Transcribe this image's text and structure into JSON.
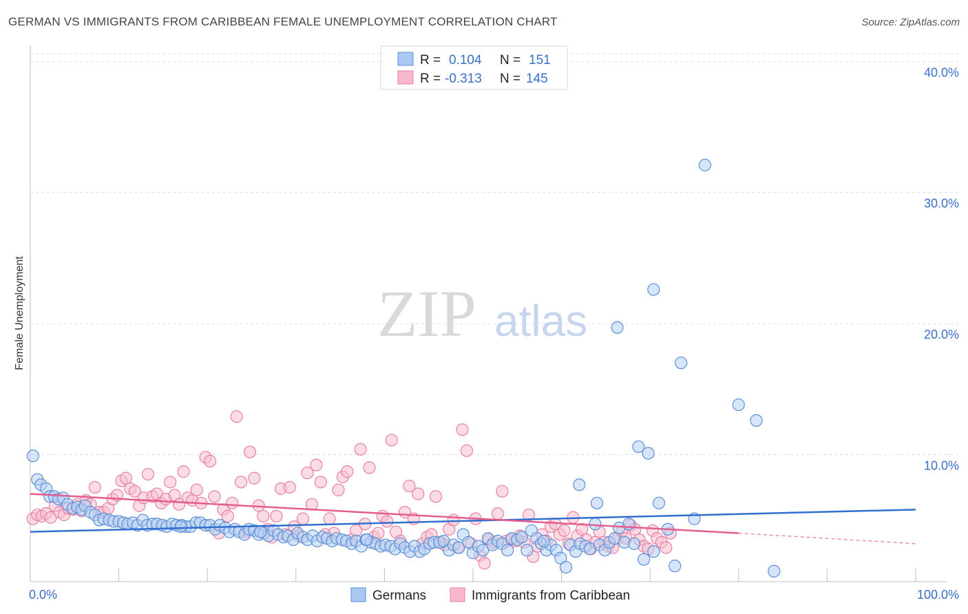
{
  "header": {
    "title": "GERMAN VS IMMIGRANTS FROM CARIBBEAN FEMALE UNEMPLOYMENT CORRELATION CHART",
    "source": "Source: ZipAtlas.com"
  },
  "watermark": {
    "zip": "ZIP",
    "atlas": "atlas"
  },
  "legend_box": {
    "rows": [
      {
        "r_label": "R =",
        "r_value": "0.104",
        "n_label": "N =",
        "n_value": "151",
        "color": "#aac8f2"
      },
      {
        "r_label": "R =",
        "r_value": "-0.313",
        "n_label": "N =",
        "n_value": "145",
        "color": "#f7b8cc"
      }
    ]
  },
  "bottom_legend": [
    {
      "label": "Germans",
      "color": "#aac8f2"
    },
    {
      "label": "Immigrants from Caribbean",
      "color": "#f7b8cc"
    }
  ],
  "colors": {
    "blue_point_fill": "#b7cff3",
    "blue_point_stroke": "#5b8fd8",
    "blue_line": "#2f6fd0",
    "pink_point_fill": "#f7bfd0",
    "pink_point_stroke": "#e87fa2",
    "pink_line": "#e35d8e",
    "grid": "#dddddd",
    "axis_text": "#3a6fc9"
  },
  "chart_data": {
    "type": "scatter",
    "title": "GERMAN VS IMMIGRANTS FROM CARIBBEAN FEMALE UNEMPLOYMENT CORRELATION CHART",
    "xlabel": "",
    "ylabel": "Female Unemployment",
    "xlim": [
      0,
      100
    ],
    "ylim": [
      0,
      42
    ],
    "x_tick_labels": [
      "0.0%",
      "100.0%"
    ],
    "y_ticks": [
      10,
      20,
      30,
      40
    ],
    "y_tick_labels": [
      "10.0%",
      "20.0%",
      "30.0%",
      "40.0%"
    ],
    "grid": true,
    "legend_position": "top-center",
    "series": [
      {
        "name": "Germans",
        "r": 0.104,
        "n": 151,
        "trend": {
          "x": [
            0,
            100
          ],
          "y": [
            4.1,
            5.8
          ]
        },
        "points": [
          [
            0.3,
            9.9
          ],
          [
            0.8,
            8.1
          ],
          [
            1.2,
            7.7
          ],
          [
            1.8,
            7.4
          ],
          [
            2.2,
            6.8
          ],
          [
            2.7,
            6.8
          ],
          [
            3.2,
            6.6
          ],
          [
            3.7,
            6.7
          ],
          [
            4.2,
            6.2
          ],
          [
            4.8,
            5.9
          ],
          [
            5.3,
            6.0
          ],
          [
            5.8,
            5.8
          ],
          [
            6.2,
            6.1
          ],
          [
            6.8,
            5.6
          ],
          [
            7.3,
            5.4
          ],
          [
            7.8,
            5.0
          ],
          [
            8.3,
            5.1
          ],
          [
            8.9,
            5.0
          ],
          [
            9.4,
            4.9
          ],
          [
            10.0,
            4.9
          ],
          [
            10.5,
            4.8
          ],
          [
            11.0,
            4.7
          ],
          [
            11.6,
            4.8
          ],
          [
            12.1,
            4.6
          ],
          [
            12.7,
            5.0
          ],
          [
            13.2,
            4.6
          ],
          [
            13.8,
            4.7
          ],
          [
            14.3,
            4.7
          ],
          [
            14.9,
            4.6
          ],
          [
            15.4,
            4.5
          ],
          [
            16.0,
            4.7
          ],
          [
            16.5,
            4.6
          ],
          [
            17.1,
            4.6
          ],
          [
            17.6,
            4.5
          ],
          [
            18.1,
            4.5
          ],
          [
            18.7,
            4.8
          ],
          [
            19.2,
            4.8
          ],
          [
            19.8,
            4.6
          ],
          [
            20.3,
            4.6
          ],
          [
            20.9,
            4.3
          ],
          [
            21.4,
            4.6
          ],
          [
            22.0,
            4.4
          ],
          [
            22.5,
            4.1
          ],
          [
            23.1,
            4.3
          ],
          [
            23.6,
            4.1
          ],
          [
            24.2,
            3.9
          ],
          [
            24.7,
            4.3
          ],
          [
            25.3,
            4.2
          ],
          [
            25.8,
            3.9
          ],
          [
            26.4,
            4.0
          ],
          [
            26.9,
            3.8
          ],
          [
            27.5,
            4.2
          ],
          [
            28.0,
            3.9
          ],
          [
            28.6,
            3.7
          ],
          [
            29.1,
            3.8
          ],
          [
            29.7,
            3.5
          ],
          [
            30.2,
            4.0
          ],
          [
            30.8,
            3.7
          ],
          [
            31.3,
            3.5
          ],
          [
            31.9,
            3.8
          ],
          [
            32.4,
            3.4
          ],
          [
            33.0,
            3.7
          ],
          [
            33.5,
            3.6
          ],
          [
            34.1,
            3.4
          ],
          [
            34.6,
            3.6
          ],
          [
            35.2,
            3.5
          ],
          [
            35.7,
            3.4
          ],
          [
            36.3,
            3.2
          ],
          [
            36.8,
            3.4
          ],
          [
            37.4,
            3.0
          ],
          [
            37.9,
            3.5
          ],
          [
            38.5,
            3.3
          ],
          [
            39.0,
            3.2
          ],
          [
            39.6,
            3.0
          ],
          [
            40.1,
            3.1
          ],
          [
            40.7,
            3.0
          ],
          [
            41.2,
            2.8
          ],
          [
            41.8,
            3.2
          ],
          [
            42.3,
            2.9
          ],
          [
            42.9,
            2.6
          ],
          [
            43.4,
            3.0
          ],
          [
            44.0,
            2.6
          ],
          [
            44.5,
            2.8
          ],
          [
            45.1,
            3.2
          ],
          [
            45.6,
            3.3
          ],
          [
            46.2,
            3.3
          ],
          [
            46.7,
            3.4
          ],
          [
            47.3,
            2.7
          ],
          [
            47.8,
            3.1
          ],
          [
            48.4,
            2.9
          ],
          [
            48.9,
            3.9
          ],
          [
            49.5,
            3.3
          ],
          [
            50.0,
            2.5
          ],
          [
            50.6,
            3.0
          ],
          [
            51.1,
            2.7
          ],
          [
            51.7,
            3.6
          ],
          [
            52.2,
            3.1
          ],
          [
            52.8,
            3.4
          ],
          [
            53.3,
            3.2
          ],
          [
            53.9,
            2.7
          ],
          [
            54.4,
            3.6
          ],
          [
            55.0,
            3.5
          ],
          [
            55.5,
            3.7
          ],
          [
            56.1,
            2.7
          ],
          [
            56.6,
            4.2
          ],
          [
            57.2,
            3.6
          ],
          [
            57.7,
            3.2
          ],
          [
            58.3,
            2.7
          ],
          [
            58.8,
            3.1
          ],
          [
            59.4,
            2.7
          ],
          [
            59.9,
            2.1
          ],
          [
            60.5,
            1.4
          ],
          [
            61.0,
            3.1
          ],
          [
            61.6,
            2.6
          ],
          [
            62.1,
            3.2
          ],
          [
            62.7,
            3.0
          ],
          [
            63.2,
            2.8
          ],
          [
            63.8,
            4.7
          ],
          [
            64.3,
            3.1
          ],
          [
            64.9,
            2.7
          ],
          [
            65.4,
            3.3
          ],
          [
            66.0,
            3.6
          ],
          [
            66.5,
            4.4
          ],
          [
            67.1,
            3.3
          ],
          [
            67.6,
            4.7
          ],
          [
            68.2,
            3.2
          ],
          [
            68.7,
            10.6
          ],
          [
            69.3,
            2.0
          ],
          [
            69.8,
            10.1
          ],
          [
            70.4,
            2.6
          ],
          [
            71.0,
            6.3
          ],
          [
            72.0,
            4.3
          ],
          [
            72.8,
            1.5
          ],
          [
            73.5,
            17.0
          ],
          [
            75.0,
            5.1
          ],
          [
            76.2,
            32.1
          ],
          [
            66.3,
            19.7
          ],
          [
            70.4,
            22.6
          ],
          [
            80.0,
            13.8
          ],
          [
            82.0,
            12.6
          ],
          [
            84.0,
            1.1
          ],
          [
            64.0,
            6.3
          ],
          [
            62.0,
            7.7
          ],
          [
            58.0,
            3.4
          ],
          [
            38.0,
            3.5
          ],
          [
            26.0,
            4.1
          ],
          [
            17.0,
            4.5
          ]
        ]
      },
      {
        "name": "Immigrants from Caribbean",
        "r": -0.313,
        "n": 145,
        "trend": {
          "x": [
            0,
            80
          ],
          "y": [
            7.0,
            4.0
          ]
        },
        "trend_dashed": {
          "x": [
            80,
            100
          ],
          "y": [
            4.0,
            3.2
          ]
        },
        "points": [
          [
            0.3,
            5.1
          ],
          [
            0.8,
            5.4
          ],
          [
            1.3,
            5.3
          ],
          [
            1.8,
            5.5
          ],
          [
            2.3,
            5.2
          ],
          [
            2.8,
            6.1
          ],
          [
            3.3,
            5.6
          ],
          [
            3.8,
            5.4
          ],
          [
            4.3,
            5.9
          ],
          [
            4.8,
            5.8
          ],
          [
            5.3,
            6.2
          ],
          [
            5.8,
            5.7
          ],
          [
            6.3,
            6.5
          ],
          [
            6.8,
            6.2
          ],
          [
            7.3,
            7.5
          ],
          [
            7.8,
            5.6
          ],
          [
            8.3,
            5.6
          ],
          [
            8.8,
            5.9
          ],
          [
            9.3,
            6.6
          ],
          [
            9.8,
            6.9
          ],
          [
            10.3,
            8.0
          ],
          [
            10.8,
            8.2
          ],
          [
            11.3,
            7.4
          ],
          [
            11.8,
            7.2
          ],
          [
            12.3,
            6.1
          ],
          [
            12.8,
            6.7
          ],
          [
            13.3,
            8.5
          ],
          [
            13.8,
            6.8
          ],
          [
            14.3,
            7.0
          ],
          [
            14.8,
            6.3
          ],
          [
            15.3,
            6.6
          ],
          [
            15.8,
            7.9
          ],
          [
            16.3,
            6.9
          ],
          [
            16.8,
            6.2
          ],
          [
            17.3,
            8.7
          ],
          [
            17.8,
            6.7
          ],
          [
            18.3,
            6.5
          ],
          [
            18.8,
            7.3
          ],
          [
            19.3,
            6.3
          ],
          [
            19.8,
            9.8
          ],
          [
            20.3,
            9.5
          ],
          [
            20.8,
            6.8
          ],
          [
            21.3,
            4.0
          ],
          [
            21.8,
            5.8
          ],
          [
            22.3,
            5.3
          ],
          [
            22.8,
            6.3
          ],
          [
            23.3,
            12.9
          ],
          [
            23.8,
            7.9
          ],
          [
            24.3,
            4.1
          ],
          [
            24.8,
            10.2
          ],
          [
            25.3,
            8.2
          ],
          [
            25.8,
            6.1
          ],
          [
            26.3,
            5.3
          ],
          [
            26.8,
            4.3
          ],
          [
            27.3,
            3.7
          ],
          [
            27.8,
            5.3
          ],
          [
            28.3,
            7.4
          ],
          [
            28.8,
            3.9
          ],
          [
            29.3,
            7.5
          ],
          [
            29.8,
            4.5
          ],
          [
            30.3,
            3.8
          ],
          [
            30.8,
            5.1
          ],
          [
            31.3,
            8.6
          ],
          [
            31.8,
            6.2
          ],
          [
            32.3,
            9.2
          ],
          [
            32.8,
            7.9
          ],
          [
            33.3,
            3.9
          ],
          [
            33.8,
            5.1
          ],
          [
            34.3,
            4.0
          ],
          [
            34.8,
            7.3
          ],
          [
            35.3,
            8.3
          ],
          [
            35.8,
            8.7
          ],
          [
            36.3,
            3.5
          ],
          [
            36.8,
            4.2
          ],
          [
            37.3,
            10.4
          ],
          [
            37.8,
            4.7
          ],
          [
            38.3,
            9.0
          ],
          [
            38.8,
            3.7
          ],
          [
            39.3,
            4.0
          ],
          [
            39.8,
            5.3
          ],
          [
            40.3,
            4.9
          ],
          [
            40.8,
            11.1
          ],
          [
            41.3,
            4.1
          ],
          [
            41.8,
            3.4
          ],
          [
            42.3,
            5.6
          ],
          [
            42.8,
            7.6
          ],
          [
            43.3,
            5.1
          ],
          [
            43.8,
            7.0
          ],
          [
            44.3,
            3.2
          ],
          [
            44.8,
            3.7
          ],
          [
            45.3,
            3.9
          ],
          [
            45.8,
            6.8
          ],
          [
            46.3,
            3.3
          ],
          [
            46.8,
            3.1
          ],
          [
            47.3,
            4.3
          ],
          [
            47.8,
            5.0
          ],
          [
            48.3,
            2.9
          ],
          [
            48.8,
            11.9
          ],
          [
            49.3,
            10.3
          ],
          [
            49.8,
            3.2
          ],
          [
            50.3,
            5.1
          ],
          [
            50.8,
            2.3
          ],
          [
            51.3,
            1.7
          ],
          [
            51.8,
            3.5
          ],
          [
            52.3,
            3.3
          ],
          [
            52.8,
            5.5
          ],
          [
            53.3,
            7.2
          ],
          [
            53.8,
            3.4
          ],
          [
            54.3,
            3.5
          ],
          [
            54.8,
            3.4
          ],
          [
            55.3,
            3.8
          ],
          [
            55.8,
            3.3
          ],
          [
            56.3,
            5.4
          ],
          [
            56.8,
            2.2
          ],
          [
            57.3,
            3.0
          ],
          [
            57.8,
            3.9
          ],
          [
            58.3,
            3.4
          ],
          [
            58.8,
            4.5
          ],
          [
            59.3,
            4.7
          ],
          [
            59.8,
            3.9
          ],
          [
            60.3,
            4.2
          ],
          [
            60.8,
            3.2
          ],
          [
            61.3,
            5.2
          ],
          [
            61.8,
            3.8
          ],
          [
            62.3,
            4.3
          ],
          [
            62.8,
            3.5
          ],
          [
            63.3,
            2.8
          ],
          [
            63.8,
            3.3
          ],
          [
            64.3,
            4.1
          ],
          [
            64.8,
            3.3
          ],
          [
            65.3,
            3.0
          ],
          [
            65.8,
            2.9
          ],
          [
            66.3,
            3.6
          ],
          [
            66.8,
            4.1
          ],
          [
            67.3,
            3.6
          ],
          [
            67.8,
            4.6
          ],
          [
            68.3,
            4.3
          ],
          [
            68.8,
            3.5
          ],
          [
            69.3,
            3.0
          ],
          [
            69.8,
            2.8
          ],
          [
            70.3,
            4.2
          ],
          [
            70.8,
            3.6
          ],
          [
            71.3,
            3.3
          ],
          [
            71.8,
            2.9
          ],
          [
            72.3,
            4.0
          ]
        ]
      }
    ]
  }
}
